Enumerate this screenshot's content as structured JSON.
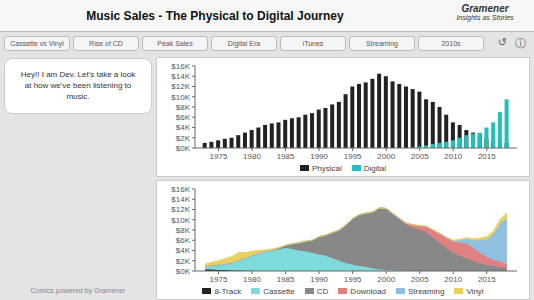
{
  "title": "Music Sales - The Physical to Digital Journey",
  "annotations": [
    "Gramener",
    "Insights as Stories",
    "Hey!! I am Dev. Let's take a look\nat how we've been listening to\nmusic.",
    "Comics powered by Gramener",
    "↺",
    "ⓘ",
    "Cassette vs Vinyl",
    "Rise of CD",
    "Peak Sales",
    "Digital Era",
    "iTunes",
    "Streaming",
    "2010s"
  ],
  "chart_data": [
    {
      "type": "bar",
      "x": [
        1973,
        1974,
        1975,
        1976,
        1977,
        1978,
        1979,
        1980,
        1981,
        1982,
        1983,
        1984,
        1985,
        1986,
        1987,
        1988,
        1989,
        1990,
        1991,
        1992,
        1993,
        1994,
        1995,
        1996,
        1997,
        1998,
        1999,
        2000,
        2001,
        2002,
        2003,
        2004,
        2005,
        2006,
        2007,
        2008,
        2009,
        2010,
        2011,
        2012,
        2013,
        2014,
        2015,
        2016,
        2017,
        2018
      ],
      "series": [
        {
          "name": "Physical",
          "color": "#222222",
          "values": [
            1.0,
            1.2,
            1.5,
            1.8,
            2.0,
            2.5,
            3.0,
            3.5,
            4.0,
            4.5,
            4.8,
            5.0,
            5.5,
            5.8,
            6.0,
            6.5,
            6.8,
            7.5,
            7.8,
            8.5,
            9.0,
            10.5,
            12.0,
            12.5,
            12.8,
            13.5,
            14.5,
            14.0,
            13.0,
            12.5,
            12.0,
            11.5,
            11.0,
            9.5,
            9.0,
            8.0,
            6.5,
            5.0,
            4.5,
            3.5,
            3.0,
            2.8,
            2.0,
            1.5,
            1.2,
            1.0
          ]
        },
        {
          "name": "Digital",
          "color": "#20C0C0",
          "values": [
            0,
            0,
            0,
            0,
            0,
            0,
            0,
            0,
            0,
            0,
            0,
            0,
            0,
            0,
            0,
            0,
            0,
            0,
            0,
            0,
            0,
            0,
            0,
            0,
            0,
            0,
            0,
            0,
            0,
            0,
            0,
            0.1,
            0.3,
            0.5,
            0.8,
            1.0,
            1.2,
            1.5,
            2.0,
            2.5,
            2.8,
            3.0,
            4.0,
            5.0,
            7.0,
            9.5
          ]
        }
      ],
      "xlim": [
        1971.5,
        2019.5
      ],
      "xticks": [
        1975,
        1980,
        1985,
        1990,
        1995,
        2000,
        2005,
        2010,
        2015
      ],
      "ylim": [
        0,
        16
      ],
      "yticks": [
        {
          "value": 0,
          "label": "$0K"
        },
        {
          "value": 2,
          "label": "$2K"
        },
        {
          "value": 4,
          "label": "$4K"
        },
        {
          "value": 6,
          "label": "$6K"
        },
        {
          "value": 8,
          "label": "$8K"
        },
        {
          "value": 10,
          "label": "$10K"
        },
        {
          "value": 12,
          "label": "$12K"
        },
        {
          "value": 14,
          "label": "$14K"
        },
        {
          "value": 16,
          "label": "$16K"
        }
      ],
      "grid": false
    },
    {
      "type": "area",
      "stacked": true,
      "x": [
        1973,
        1974,
        1975,
        1976,
        1977,
        1978,
        1979,
        1980,
        1981,
        1982,
        1983,
        1984,
        1985,
        1986,
        1987,
        1988,
        1989,
        1990,
        1991,
        1992,
        1993,
        1994,
        1995,
        1996,
        1997,
        1998,
        1999,
        2000,
        2001,
        2002,
        2003,
        2004,
        2005,
        2006,
        2007,
        2008,
        2009,
        2010,
        2011,
        2012,
        2013,
        2014,
        2015,
        2016,
        2017,
        2018
      ],
      "series": [
        {
          "name": "8-Track",
          "color": "#222222",
          "values": [
            0.3,
            0.3,
            0.2,
            0.2,
            0.1,
            0.1,
            0.05,
            0.03,
            0.01,
            0.0,
            0.0,
            0.0,
            0.0,
            0.0,
            0.0,
            0.0,
            0.0,
            0.0,
            0.0,
            0.0,
            0.0,
            0.0,
            0.0,
            0.0,
            0.0,
            0.0,
            0.0,
            0.0,
            0.0,
            0.0,
            0.0,
            0.0,
            0.0,
            0.0,
            0.0,
            0.0,
            0.0,
            0.0,
            0.0,
            0.0,
            0.0,
            0.0,
            0.0,
            0.0,
            0.0,
            0.0
          ]
        },
        {
          "name": "Cassette",
          "color": "#7FDBDB",
          "values": [
            0.5,
            0.8,
            1.0,
            1.2,
            1.5,
            2.0,
            2.5,
            3.0,
            3.5,
            3.8,
            4.0,
            4.2,
            4.5,
            4.3,
            4.0,
            3.8,
            3.5,
            3.2,
            3.0,
            2.5,
            2.0,
            1.5,
            1.2,
            1.0,
            0.8,
            0.5,
            0.3,
            0.2,
            0.1,
            0.05,
            0.02,
            0.01,
            0.0,
            0.0,
            0.0,
            0.0,
            0.0,
            0.0,
            0.0,
            0.0,
            0.0,
            0.0,
            0.0,
            0.0,
            0.0,
            0.0
          ]
        },
        {
          "name": "CD",
          "color": "#888888",
          "values": [
            0.0,
            0.0,
            0.0,
            0.0,
            0.0,
            0.0,
            0.0,
            0.0,
            0.0,
            0.0,
            0.1,
            0.3,
            0.5,
            1.0,
            1.5,
            2.0,
            2.5,
            3.5,
            4.0,
            5.0,
            6.0,
            7.5,
            9.0,
            10.0,
            10.5,
            11.0,
            12.0,
            12.0,
            11.0,
            10.0,
            9.0,
            8.5,
            8.0,
            7.5,
            6.5,
            5.5,
            4.5,
            3.5,
            3.0,
            2.5,
            2.0,
            1.5,
            1.2,
            1.0,
            0.8,
            0.5
          ]
        },
        {
          "name": "Download",
          "color": "#E08080",
          "values": [
            0.0,
            0.0,
            0.0,
            0.0,
            0.0,
            0.0,
            0.0,
            0.0,
            0.0,
            0.0,
            0.0,
            0.0,
            0.0,
            0.0,
            0.0,
            0.0,
            0.0,
            0.0,
            0.0,
            0.0,
            0.0,
            0.0,
            0.0,
            0.0,
            0.0,
            0.0,
            0.0,
            0.0,
            0.1,
            0.2,
            0.3,
            0.5,
            0.8,
            1.2,
            1.5,
            1.8,
            2.0,
            2.2,
            2.5,
            2.8,
            2.5,
            2.0,
            1.5,
            1.2,
            1.0,
            0.8
          ]
        },
        {
          "name": "Streaming",
          "color": "#90C0E0",
          "values": [
            0.0,
            0.0,
            0.0,
            0.0,
            0.0,
            0.0,
            0.0,
            0.0,
            0.0,
            0.0,
            0.0,
            0.0,
            0.0,
            0.0,
            0.0,
            0.0,
            0.0,
            0.0,
            0.0,
            0.0,
            0.0,
            0.0,
            0.0,
            0.0,
            0.0,
            0.0,
            0.0,
            0.0,
            0.0,
            0.0,
            0.0,
            0.0,
            0.0,
            0.0,
            0.0,
            0.0,
            0.0,
            0.2,
            0.5,
            1.0,
            1.5,
            2.5,
            3.5,
            5.0,
            7.5,
            9.0
          ]
        },
        {
          "name": "Vinyl",
          "color": "#E8D060",
          "values": [
            0.5,
            0.6,
            0.8,
            1.0,
            1.2,
            1.5,
            1.0,
            0.8,
            0.5,
            0.3,
            0.2,
            0.1,
            0.05,
            0.02,
            0.01,
            0.01,
            0.01,
            0.01,
            0.01,
            0.01,
            0.01,
            0.01,
            0.01,
            0.01,
            0.01,
            0.01,
            0.01,
            0.01,
            0.01,
            0.01,
            0.01,
            0.01,
            0.01,
            0.01,
            0.02,
            0.03,
            0.05,
            0.1,
            0.15,
            0.2,
            0.3,
            0.4,
            0.5,
            0.6,
            0.8,
            1.0
          ]
        }
      ],
      "xlim": [
        1971.5,
        2019.5
      ],
      "xticks": [
        1975,
        1980,
        1985,
        1990,
        1995,
        2000,
        2005,
        2010,
        2015
      ],
      "ylim": [
        0,
        16
      ],
      "yticks": [
        {
          "value": 0,
          "label": "$0K"
        },
        {
          "value": 2,
          "label": "$2K"
        },
        {
          "value": 4,
          "label": "$4K"
        },
        {
          "value": 6,
          "label": "$6K"
        },
        {
          "value": 8,
          "label": "$8K"
        },
        {
          "value": 10,
          "label": "$10K"
        },
        {
          "value": 12,
          "label": "$12K"
        },
        {
          "value": 14,
          "label": "$14K"
        },
        {
          "value": 16,
          "label": "$16K"
        }
      ],
      "grid": false
    }
  ]
}
